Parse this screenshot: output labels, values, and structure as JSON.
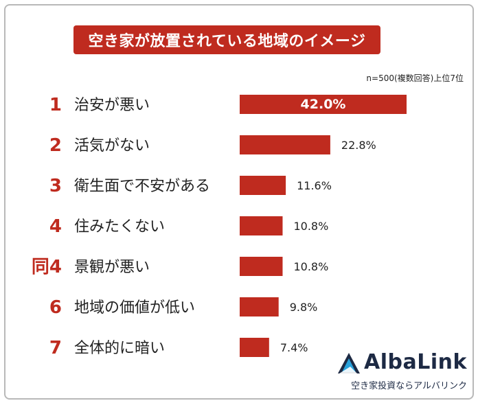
{
  "title": "空き家が放置されている地域のイメージ",
  "note": "n=500(複数回答)上位7位",
  "chart_data": {
    "type": "bar",
    "orientation": "horizontal",
    "title": "空き家が放置されている地域のイメージ",
    "categories": [
      "治安が悪い",
      "活気がない",
      "衛生面で不安がある",
      "住みたくない",
      "景観が悪い",
      "地域の価値が低い",
      "全体的に暗い"
    ],
    "ranks": [
      "1",
      "2",
      "3",
      "4",
      "同4",
      "6",
      "7"
    ],
    "values": [
      42.0,
      22.8,
      11.6,
      10.8,
      10.8,
      9.8,
      7.4
    ],
    "value_labels": [
      "42.0%",
      "22.8%",
      "11.6%",
      "10.8%",
      "10.8%",
      "9.8%",
      "7.4%"
    ],
    "xlim": [
      0,
      42.0
    ],
    "grid": false,
    "bar_color": "#bf2b1f",
    "rank_color": "#bf2b1f"
  },
  "logo": {
    "name": "AlbaLink",
    "tagline": "空き家投資ならアルバリンク",
    "icon": "triangle-logo-icon"
  },
  "colors": {
    "accent": "#bf2b1f",
    "text": "#222222",
    "logo_text": "#1d2a44",
    "logo_blue": "#2aa3dc"
  }
}
